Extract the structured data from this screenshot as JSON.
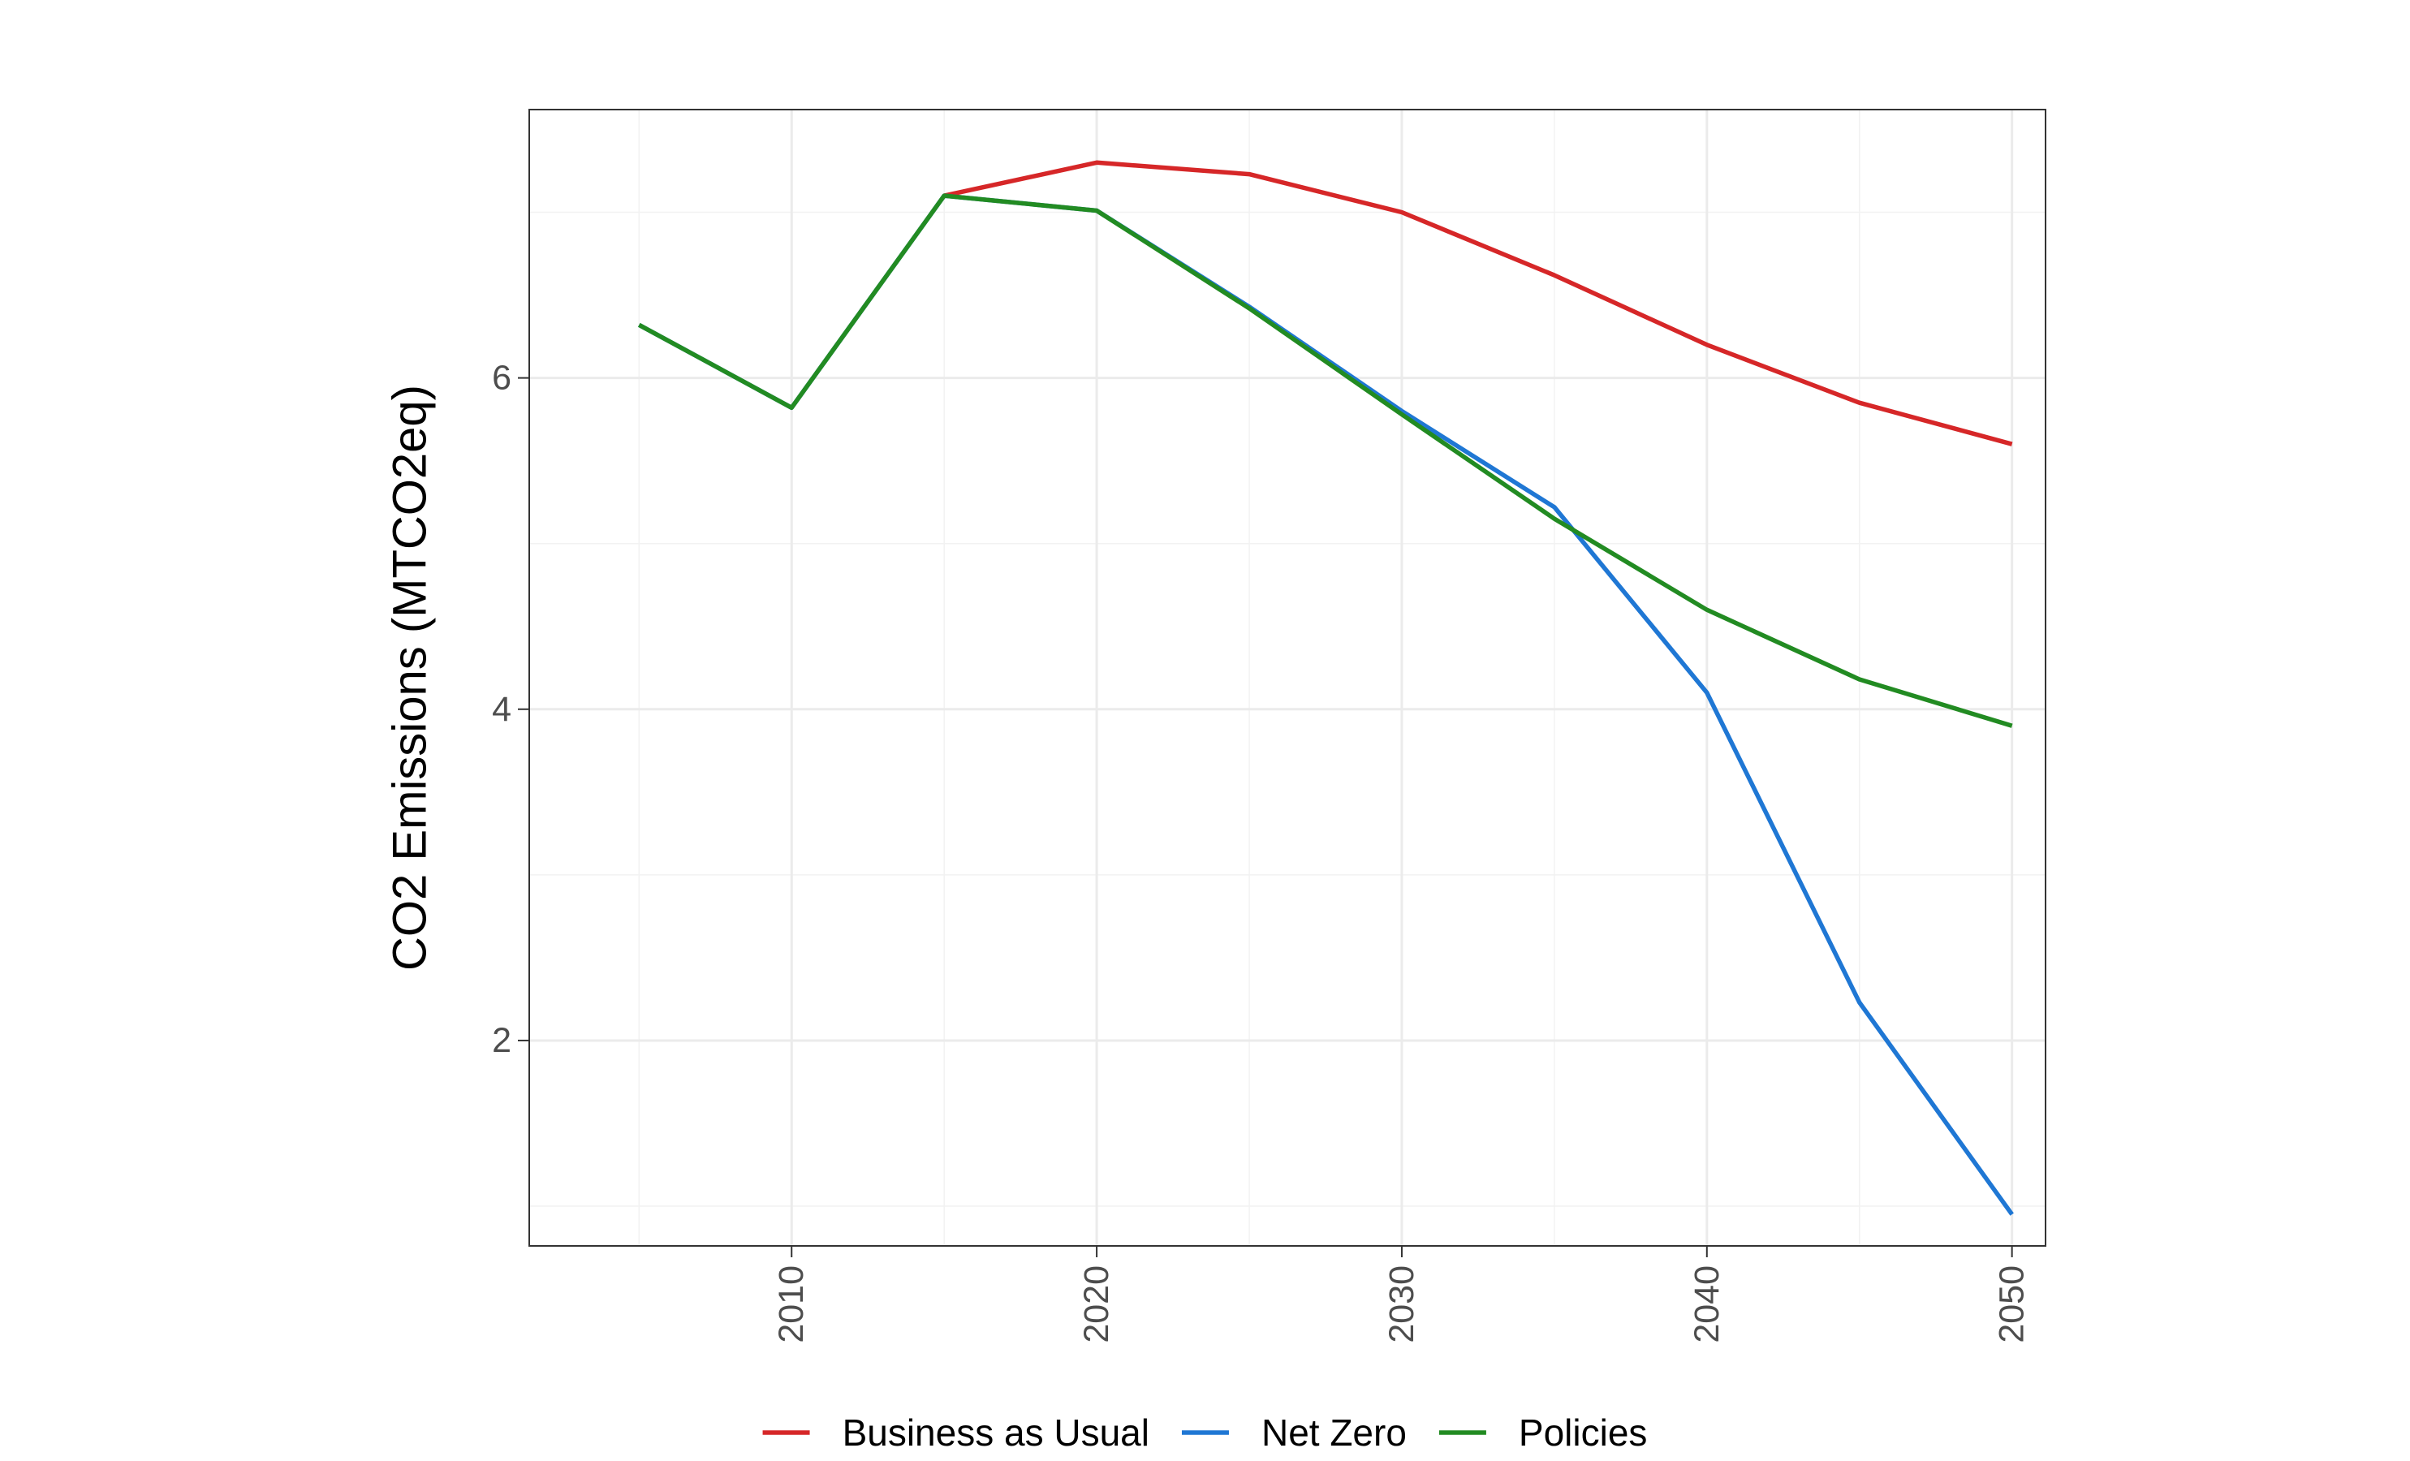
{
  "chart_data": {
    "type": "line",
    "title": "",
    "xlabel": "",
    "ylabel": "CO2 Emissions (MTCO2eq)",
    "x": [
      2005,
      2010,
      2015,
      2020,
      2025,
      2030,
      2035,
      2040,
      2045,
      2050
    ],
    "xlim": [
      2001.4,
      2051.1
    ],
    "ylim": [
      0.76,
      7.62
    ],
    "x_ticks": [
      2010,
      2020,
      2030,
      2040,
      2050
    ],
    "y_ticks": [
      2,
      4,
      6
    ],
    "x_tick_labels": [
      "2010",
      "2020",
      "2030",
      "2040",
      "2050"
    ],
    "y_tick_labels": [
      "2",
      "4",
      "6"
    ],
    "grid": true,
    "legend_position": "bottom",
    "series": [
      {
        "name": "Business as Usual",
        "color": "#d62728",
        "values": [
          null,
          null,
          7.1,
          7.3,
          7.23,
          7.0,
          6.62,
          6.2,
          5.85,
          5.6
        ]
      },
      {
        "name": "Net Zero",
        "color": "#1f77d4",
        "values": [
          6.32,
          5.82,
          7.1,
          7.01,
          6.43,
          5.8,
          5.22,
          4.1,
          2.23,
          0.95
        ]
      },
      {
        "name": "Policies",
        "color": "#228b22",
        "values": [
          6.32,
          5.82,
          7.1,
          7.01,
          6.42,
          5.78,
          5.15,
          4.6,
          4.18,
          3.9
        ]
      }
    ]
  }
}
